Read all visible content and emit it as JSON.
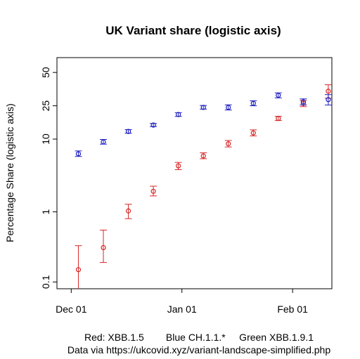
{
  "chart_data": {
    "type": "scatter",
    "title": "UK Variant share (logistic axis)",
    "ylabel": "Percentage Share (logistic axis)",
    "xlabel": "",
    "y_scale": "logistic",
    "grid": false,
    "xlim": [
      "2022-11-27",
      "2023-02-12"
    ],
    "ylim": [
      0.08,
      62
    ],
    "y_ticks": [
      {
        "value": 0.1,
        "label": "0.1"
      },
      {
        "value": 1,
        "label": "1"
      },
      {
        "value": 10,
        "label": "10"
      },
      {
        "value": 25,
        "label": "25"
      },
      {
        "value": 50,
        "label": "50"
      }
    ],
    "x_ticks": [
      {
        "value": "2022-12-01",
        "label": "Dec 01"
      },
      {
        "value": "2023-01-01",
        "label": "Jan 01"
      },
      {
        "value": "2023-02-01",
        "label": "Feb 01"
      }
    ],
    "series": [
      {
        "name": "XBB.1.5",
        "color": "#d62728",
        "points": [
          {
            "x": "2022-12-03",
            "y": 0.15,
            "lo": 0.07,
            "hi": 0.33
          },
          {
            "x": "2022-12-10",
            "y": 0.31,
            "lo": 0.19,
            "hi": 0.55
          },
          {
            "x": "2022-12-17",
            "y": 1.03,
            "lo": 0.8,
            "hi": 1.28
          },
          {
            "x": "2022-12-24",
            "y": 1.95,
            "lo": 1.68,
            "hi": 2.3
          },
          {
            "x": "2022-12-31",
            "y": 4.4,
            "lo": 3.9,
            "hi": 4.9
          },
          {
            "x": "2023-01-07",
            "y": 6.0,
            "lo": 5.5,
            "hi": 6.6
          },
          {
            "x": "2023-01-14",
            "y": 8.7,
            "lo": 7.9,
            "hi": 9.6
          },
          {
            "x": "2023-01-21",
            "y": 12.0,
            "lo": 11.0,
            "hi": 13.1
          },
          {
            "x": "2023-01-28",
            "y": 18.0,
            "lo": 17.0,
            "hi": 19.1
          },
          {
            "x": "2023-02-04",
            "y": 26.5,
            "lo": 24.5,
            "hi": 28.5
          },
          {
            "x": "2023-02-11",
            "y": 35.0,
            "lo": 30.0,
            "hi": 40.0
          }
        ]
      },
      {
        "name": "CH.1.1.*",
        "color": "#1f1fbf",
        "points": [
          {
            "x": "2022-12-03",
            "y": 6.4,
            "lo": 5.9,
            "hi": 7.0
          },
          {
            "x": "2022-12-10",
            "y": 9.2,
            "lo": 8.6,
            "hi": 9.9
          },
          {
            "x": "2022-12-17",
            "y": 12.5,
            "lo": 11.9,
            "hi": 13.2
          },
          {
            "x": "2022-12-24",
            "y": 15.0,
            "lo": 14.4,
            "hi": 15.7
          },
          {
            "x": "2022-12-31",
            "y": 20.0,
            "lo": 19.0,
            "hi": 21.0
          },
          {
            "x": "2023-01-07",
            "y": 24.0,
            "lo": 23.0,
            "hi": 25.2
          },
          {
            "x": "2023-01-14",
            "y": 24.0,
            "lo": 22.5,
            "hi": 25.6
          },
          {
            "x": "2023-01-21",
            "y": 26.5,
            "lo": 25.0,
            "hi": 28.2
          },
          {
            "x": "2023-01-28",
            "y": 32.0,
            "lo": 30.2,
            "hi": 33.8
          },
          {
            "x": "2023-02-04",
            "y": 27.5,
            "lo": 25.5,
            "hi": 29.5
          },
          {
            "x": "2023-02-11",
            "y": 29.0,
            "lo": 25.5,
            "hi": 32.5
          }
        ]
      }
    ],
    "captions": [
      "Red: XBB.1.5        Blue CH.1.1.*     Green XBB.1.9.1",
      "Data via https://ukcovid.xyz/variant-landscape-simplified.php"
    ]
  }
}
